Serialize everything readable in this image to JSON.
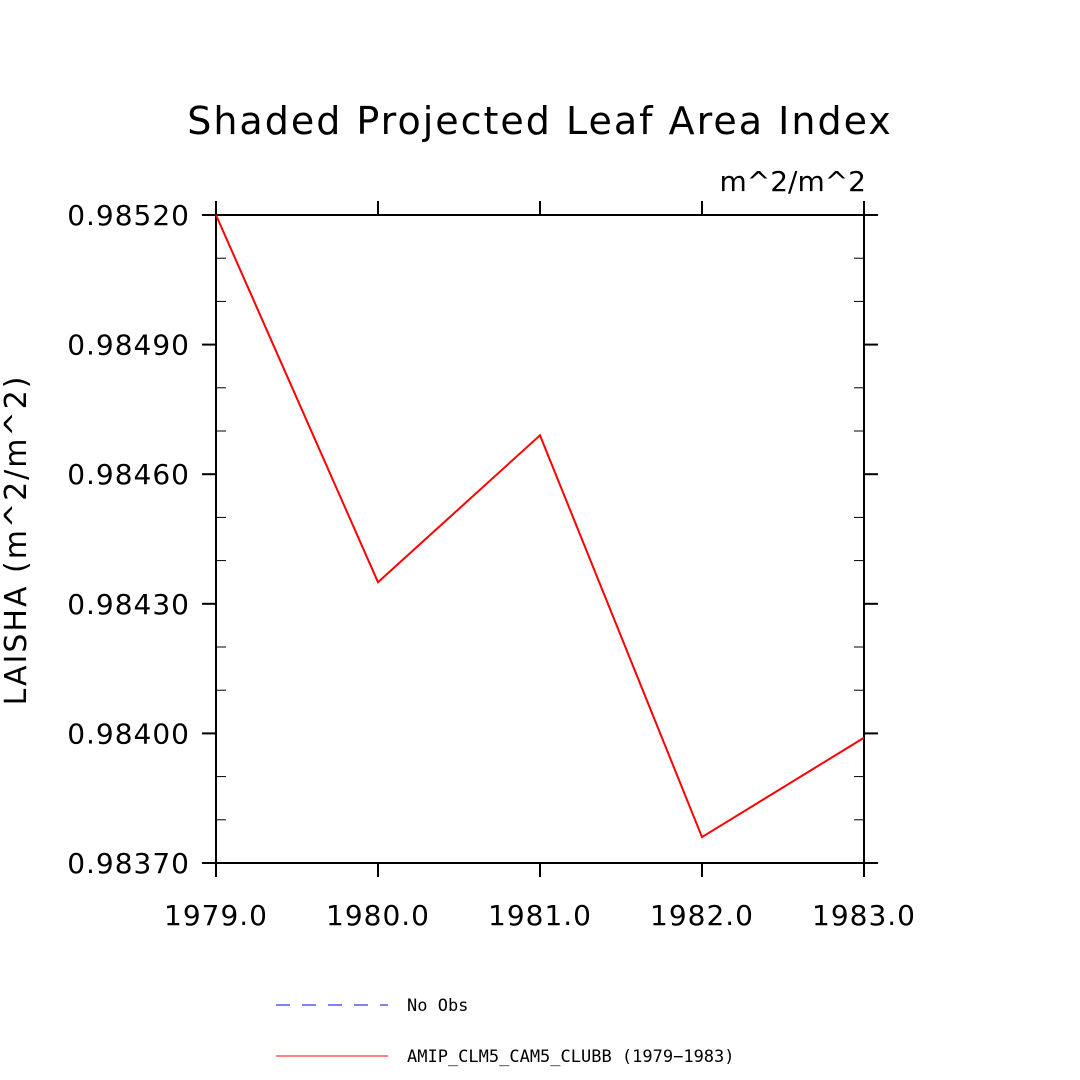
{
  "chart_data": {
    "type": "line",
    "title": "Shaded Projected Leaf Area Index",
    "units": "m^2/m^2",
    "ylabel": "LAISHA  (m^2/m^2)",
    "xlabel": "",
    "xlim": [
      1979.0,
      1983.0
    ],
    "ylim": [
      0.9837,
      0.9852
    ],
    "x_ticks": [
      1979.0,
      1980.0,
      1981.0,
      1982.0,
      1983.0
    ],
    "x_tick_labels": [
      "1979.0",
      "1980.0",
      "1981.0",
      "1982.0",
      "1983.0"
    ],
    "y_ticks": [
      0.9837,
      0.984,
      0.9843,
      0.9846,
      0.9849,
      0.9852
    ],
    "y_tick_labels": [
      "0.98370",
      "0.98400",
      "0.98430",
      "0.98460",
      "0.98490",
      "0.98520"
    ],
    "y_minor_step": 0.0001,
    "series": [
      {
        "name": "AMIP_CLM5_CAM5_CLUBB (1979-1983)",
        "color": "#ff0000",
        "style": "solid",
        "x": [
          1979.0,
          1980.0,
          1981.0,
          1982.0,
          1983.0
        ],
        "values": [
          0.9852,
          0.98435,
          0.98469,
          0.98376,
          0.98399
        ]
      },
      {
        "name": "No Obs",
        "color": "#0000ff",
        "style": "dashed",
        "x": [],
        "values": []
      }
    ],
    "legend": [
      {
        "label": "No Obs",
        "color": "#0000ff",
        "style": "dashed"
      },
      {
        "label": "AMIP_CLM5_CAM5_CLUBB (1979−1983)",
        "color": "#ff0000",
        "style": "solid"
      }
    ],
    "legend_position": "bottom-center",
    "grid": false
  }
}
